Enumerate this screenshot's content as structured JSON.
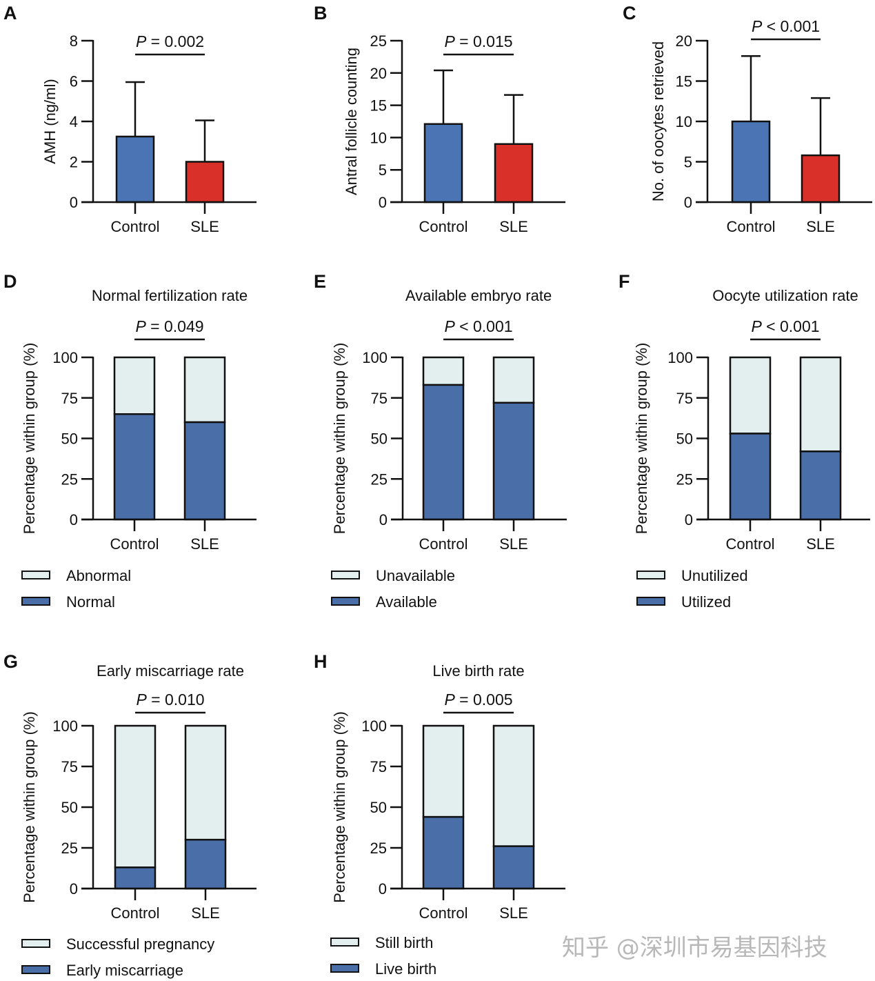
{
  "colors": {
    "control_blue": "#4a74b4",
    "sle_red": "#d9302a",
    "stack_dark": "#4a6ea8",
    "stack_light": "#e3eeef",
    "ink": "#111111"
  },
  "watermark": "知乎 @深圳市易基因科技",
  "chart_data": [
    {
      "id": "A",
      "type": "bar",
      "title": "",
      "categories": [
        "Control",
        "SLE"
      ],
      "values": [
        3.25,
        2.0
      ],
      "error_upper": [
        5.95,
        4.05
      ],
      "ylabel": "AMH (ng/ml)",
      "xlabel": "",
      "ylim": [
        0,
        8
      ],
      "yticks": [
        0,
        2,
        4,
        6,
        8
      ],
      "p_label": "P",
      "p_text": " = 0.002",
      "colors": [
        "#4a74b4",
        "#d9302a"
      ],
      "grid": false
    },
    {
      "id": "B",
      "type": "bar",
      "title": "",
      "categories": [
        "Control",
        "SLE"
      ],
      "values": [
        12.1,
        9.0
      ],
      "error_upper": [
        20.4,
        16.6
      ],
      "ylabel": "Antral follicle counting",
      "xlabel": "",
      "ylim": [
        0,
        25
      ],
      "yticks": [
        0,
        5,
        10,
        15,
        20,
        25
      ],
      "p_label": "P",
      "p_text": " = 0.015",
      "colors": [
        "#4a74b4",
        "#d9302a"
      ],
      "grid": false
    },
    {
      "id": "C",
      "type": "bar",
      "title": "",
      "categories": [
        "Control",
        "SLE"
      ],
      "values": [
        10.0,
        5.8
      ],
      "error_upper": [
        18.1,
        12.9
      ],
      "ylabel": "No. of oocytes retrieved",
      "xlabel": "",
      "ylim": [
        0,
        20
      ],
      "yticks": [
        0,
        5,
        10,
        15,
        20
      ],
      "p_label": "P",
      "p_text": " < 0.001",
      "colors": [
        "#4a74b4",
        "#d9302a"
      ],
      "grid": false
    },
    {
      "id": "D",
      "type": "bar",
      "stacked": true,
      "title": "Normal fertilization rate",
      "categories": [
        "Control",
        "SLE"
      ],
      "series": [
        {
          "name": "Normal",
          "values": [
            65,
            60
          ]
        },
        {
          "name": "Abnormal",
          "values": [
            35,
            40
          ]
        }
      ],
      "legend": [
        "Abnormal",
        "Normal"
      ],
      "ylabel": "Percentage within group  (%)",
      "xlabel": "",
      "ylim": [
        0,
        100
      ],
      "yticks": [
        0,
        25,
        50,
        75,
        100
      ],
      "p_label": "P",
      "p_text": " = 0.049",
      "legend_position": "bottom-left",
      "grid": false
    },
    {
      "id": "E",
      "type": "bar",
      "stacked": true,
      "title": "Available embryo rate",
      "categories": [
        "Control",
        "SLE"
      ],
      "series": [
        {
          "name": "Available",
          "values": [
            83,
            72
          ]
        },
        {
          "name": "Unavailable",
          "values": [
            17,
            28
          ]
        }
      ],
      "legend": [
        "Unavailable",
        "Available"
      ],
      "ylabel": "Percentage within group  (%)",
      "xlabel": "",
      "ylim": [
        0,
        100
      ],
      "yticks": [
        0,
        25,
        50,
        75,
        100
      ],
      "p_label": "P",
      "p_text": " < 0.001",
      "legend_position": "bottom-left",
      "grid": false
    },
    {
      "id": "F",
      "type": "bar",
      "stacked": true,
      "title": "Oocyte utilization rate",
      "categories": [
        "Control",
        "SLE"
      ],
      "series": [
        {
          "name": "Utilized",
          "values": [
            53,
            42
          ]
        },
        {
          "name": "Unutilized",
          "values": [
            47,
            58
          ]
        }
      ],
      "legend": [
        "Unutilized",
        "Utilized"
      ],
      "ylabel": "Percentage within group  (%)",
      "xlabel": "",
      "ylim": [
        0,
        100
      ],
      "yticks": [
        0,
        25,
        50,
        75,
        100
      ],
      "p_label": "P",
      "p_text": " < 0.001",
      "legend_position": "bottom-left",
      "grid": false
    },
    {
      "id": "G",
      "type": "bar",
      "stacked": true,
      "title": "Early miscarriage rate",
      "categories": [
        "Control",
        "SLE"
      ],
      "series": [
        {
          "name": "Early miscarriage",
          "values": [
            13,
            30
          ]
        },
        {
          "name": "Successful pregnancy",
          "values": [
            87,
            70
          ]
        }
      ],
      "legend": [
        "Successful pregnancy",
        "Early miscarriage"
      ],
      "ylabel": "Percentage within group  (%)",
      "xlabel": "",
      "ylim": [
        0,
        100
      ],
      "yticks": [
        0,
        25,
        50,
        75,
        100
      ],
      "p_label": "P",
      "p_text": " = 0.010",
      "legend_position": "bottom-left",
      "grid": false
    },
    {
      "id": "H",
      "type": "bar",
      "stacked": true,
      "title": "Live birth rate",
      "categories": [
        "Control",
        "SLE"
      ],
      "series": [
        {
          "name": "Live birth",
          "values": [
            44,
            26
          ]
        },
        {
          "name": "Still birth",
          "values": [
            56,
            74
          ]
        }
      ],
      "legend": [
        "Still birth",
        "Live birth"
      ],
      "ylabel": "Percentage within group  (%)",
      "xlabel": "",
      "ylim": [
        0,
        100
      ],
      "yticks": [
        0,
        25,
        50,
        75,
        100
      ],
      "p_label": "P",
      "p_text": " = 0.005",
      "legend_position": "bottom-left",
      "grid": false
    }
  ]
}
